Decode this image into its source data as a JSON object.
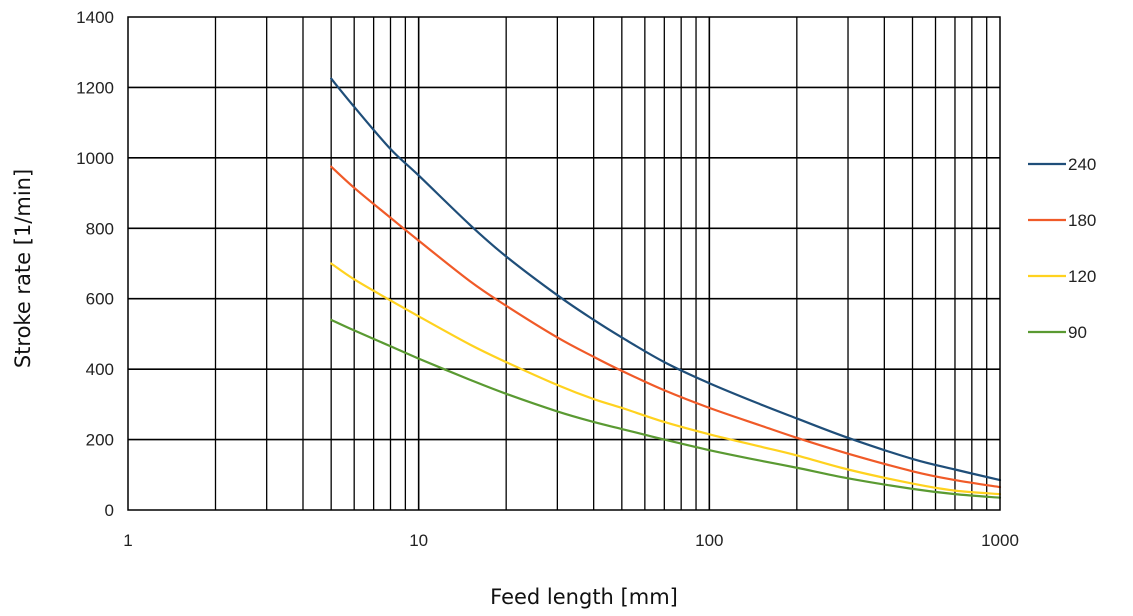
{
  "chart_data": {
    "type": "line",
    "xlabel": "Feed length [mm]",
    "ylabel": "Stroke rate [1/min]",
    "x_scale": "log",
    "xlim": [
      1,
      1000
    ],
    "ylim": [
      0,
      1400
    ],
    "x_ticks": [
      "1",
      "10",
      "100",
      "1000"
    ],
    "y_ticks": [
      "0",
      "200",
      "400",
      "600",
      "800",
      "1000",
      "1200",
      "1400"
    ],
    "grid": true,
    "legend_position": "right",
    "series": [
      {
        "name": "240",
        "color": "#1f4e79",
        "x": [
          5,
          6,
          8,
          10,
          15,
          20,
          30,
          40,
          50,
          70,
          100,
          150,
          200,
          300,
          500,
          700,
          1000
        ],
        "y": [
          1225,
          1145,
          1025,
          950,
          810,
          720,
          610,
          540,
          490,
          420,
          360,
          300,
          260,
          205,
          145,
          115,
          85
        ]
      },
      {
        "name": "180",
        "color": "#f05a28",
        "x": [
          5,
          6,
          8,
          10,
          15,
          20,
          30,
          40,
          50,
          70,
          100,
          150,
          200,
          300,
          500,
          700,
          1000
        ],
        "y": [
          975,
          915,
          830,
          765,
          650,
          580,
          490,
          435,
          395,
          340,
          290,
          240,
          205,
          160,
          110,
          85,
          65
        ]
      },
      {
        "name": "120",
        "color": "#ffd21f",
        "x": [
          5,
          6,
          8,
          10,
          15,
          20,
          30,
          40,
          50,
          70,
          100,
          150,
          200,
          300,
          500,
          700,
          1000
        ],
        "y": [
          700,
          655,
          595,
          550,
          470,
          420,
          355,
          315,
          290,
          250,
          215,
          180,
          155,
          115,
          75,
          55,
          45
        ]
      },
      {
        "name": "90",
        "color": "#5a9a32",
        "x": [
          5,
          6,
          8,
          10,
          15,
          20,
          30,
          40,
          50,
          70,
          100,
          150,
          200,
          300,
          500,
          700,
          1000
        ],
        "y": [
          540,
          510,
          465,
          430,
          370,
          330,
          280,
          250,
          230,
          200,
          170,
          140,
          120,
          90,
          60,
          45,
          35
        ]
      }
    ]
  }
}
